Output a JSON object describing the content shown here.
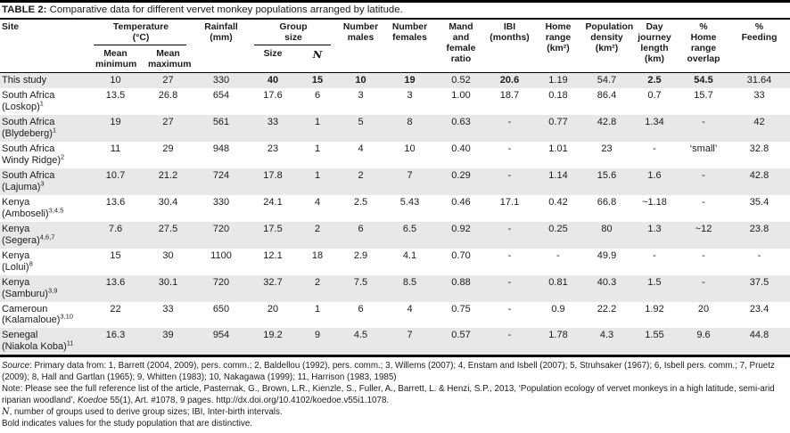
{
  "title": {
    "label": "TABLE 2:",
    "text": " Comparative data for different vervet monkey populations arranged by latitude."
  },
  "header": {
    "site": "Site",
    "temperature": "Temperature (°C)",
    "rainfall": "Rainfall (mm)",
    "group_size": "Group size",
    "mean_min": "Mean minimum",
    "mean_max": "Mean maximum",
    "size": "Size",
    "n": "N",
    "males": "Number males",
    "females": "Number females",
    "ratio": "Mand and female ratio",
    "ibi": "IBI (months)",
    "home_range": "Home range (km²)",
    "pop_density": "Population density (km²)",
    "day_journey": "Day journey length (km)",
    "overlap": "% Home range overlap",
    "feeding": "% Feeding"
  },
  "table": {
    "rows": [
      {
        "site": {
          "line1": "This study"
        },
        "values": [
          "10",
          "27",
          "330",
          "40",
          "15",
          "10",
          "19",
          "0.52",
          "20.6",
          "1.19",
          "54.7",
          "2.5",
          "54.5",
          "31.64"
        ],
        "bold": [
          3,
          4,
          5,
          6,
          8,
          11,
          12
        ]
      },
      {
        "site": {
          "line1": "South Africa",
          "line2": "(Loskop)",
          "sup": "1"
        },
        "values": [
          "13.5",
          "26.8",
          "654",
          "17.6",
          "6",
          "3",
          "3",
          "1.00",
          "18.7",
          "0.18",
          "86.4",
          "0.7",
          "15.7",
          "33"
        ]
      },
      {
        "site": {
          "line1": "South Africa",
          "line2": "(Blydeberg)",
          "sup": "1"
        },
        "values": [
          "19",
          "27",
          "561",
          "33",
          "1",
          "5",
          "8",
          "0.63",
          "-",
          "0.77",
          "42.8",
          "1.34",
          "-",
          "42"
        ]
      },
      {
        "site": {
          "line1": "South Africa",
          "line2": "Windy Ridge)",
          "sup": "2"
        },
        "values": [
          "11",
          "29",
          "948",
          "23",
          "1",
          "4",
          "10",
          "0.40",
          "-",
          "1.01",
          "23",
          "-",
          "‘small’",
          "32.8"
        ]
      },
      {
        "site": {
          "line1": "South Africa",
          "line2": "(Lajuma)",
          "sup": "3"
        },
        "values": [
          "10.7",
          "21.2",
          "724",
          "17.8",
          "1",
          "2",
          "7",
          "0.29",
          "-",
          "1.14",
          "15.6",
          "1.6",
          "-",
          "42.8"
        ]
      },
      {
        "site": {
          "line1": "Kenya",
          "line2": "(Amboseli)",
          "sup": "3,4,5"
        },
        "values": [
          "13.6",
          "30.4",
          "330",
          "24.1",
          "4",
          "2.5",
          "5.43",
          "0.46",
          "17.1",
          "0.42",
          "66.8",
          "~1.18",
          "-",
          "35.4"
        ]
      },
      {
        "site": {
          "line1": "Kenya",
          "line2": "(Segera)",
          "sup": "4,6,7"
        },
        "values": [
          "7.6",
          "27.5",
          "720",
          "17.5",
          "2",
          "6",
          "6.5",
          "0.92",
          "-",
          "0.25",
          "80",
          "1.3",
          "~12",
          "23.8"
        ]
      },
      {
        "site": {
          "line1": "Kenya",
          "line2": "(Lolui)",
          "sup": "8"
        },
        "values": [
          "15",
          "30",
          "1100",
          "12.1",
          "18",
          "2.9",
          "4.1",
          "0.70",
          "-",
          "-",
          "49.9",
          "-",
          "-",
          "-"
        ]
      },
      {
        "site": {
          "line1": "Kenya",
          "line2": "(Samburu)",
          "sup": "3,9"
        },
        "values": [
          "13.6",
          "30.1",
          "720",
          "32.7",
          "2",
          "7.5",
          "8.5",
          "0.88",
          "-",
          "0.81",
          "40.3",
          "1.5",
          "-",
          "37.5"
        ]
      },
      {
        "site": {
          "line1": "Cameroun",
          "line2": "(Kalamaloue)",
          "sup": "3,10"
        },
        "values": [
          "22",
          "33",
          "650",
          "20",
          "1",
          "6",
          "4",
          "0.75",
          "-",
          "0.9",
          "22.2",
          "1.92",
          "20",
          "23.4"
        ]
      },
      {
        "site": {
          "line1": "Senegal",
          "line2": "(Niakola Koba)",
          "sup": "11"
        },
        "values": [
          "16.3",
          "39",
          "954",
          "19.2",
          "9",
          "4.5",
          "7",
          "0.57",
          "-",
          "1.78",
          "4.3",
          "1.55",
          "9.6",
          "44.8"
        ]
      }
    ]
  },
  "notes": [
    {
      "segments": [
        {
          "text": "Source",
          "italic": true
        },
        {
          "text": ": Primary data from: 1, Barrett (2004, 2009), pers. comm.; 2, Baldellou (1992), pers. comm.; 3, Willems (2007); 4, Enstam and Isbell (2007); 5, Struhsaker (1967); 6, Isbell pers. comm.; 7, Pruetz (2009); 8, Hall and Gartlan (1965); 9, Whitten (1983); 10, Nakagawa (1999); 11, Harrison (1983, 1985)"
        }
      ]
    },
    {
      "segments": [
        {
          "text": "Note: Please see the full reference list of the article, Pasternak, G., Brown, L.R., Kienzle, S., Fuller, A., Barrett, L. & Henzi, S.P., 2013, ‘Population ecology of vervet monkeys in a high latitude, semi-arid riparian woodland’, "
        },
        {
          "text": "Koedoe",
          "italic": true
        },
        {
          "text": " 55(1), Art. #1078, 9 pages. http://dx.doi.org/10.4102/koedoe.v55i1.1078."
        }
      ]
    },
    {
      "segments": [
        {
          "text": "N",
          "serif": true
        },
        {
          "text": ", number of groups used to derive group sizes; IBI, Inter-birth intervals."
        }
      ]
    },
    {
      "segments": [
        {
          "text": "Bold indicates values for the study population that are distinctive."
        }
      ]
    }
  ]
}
